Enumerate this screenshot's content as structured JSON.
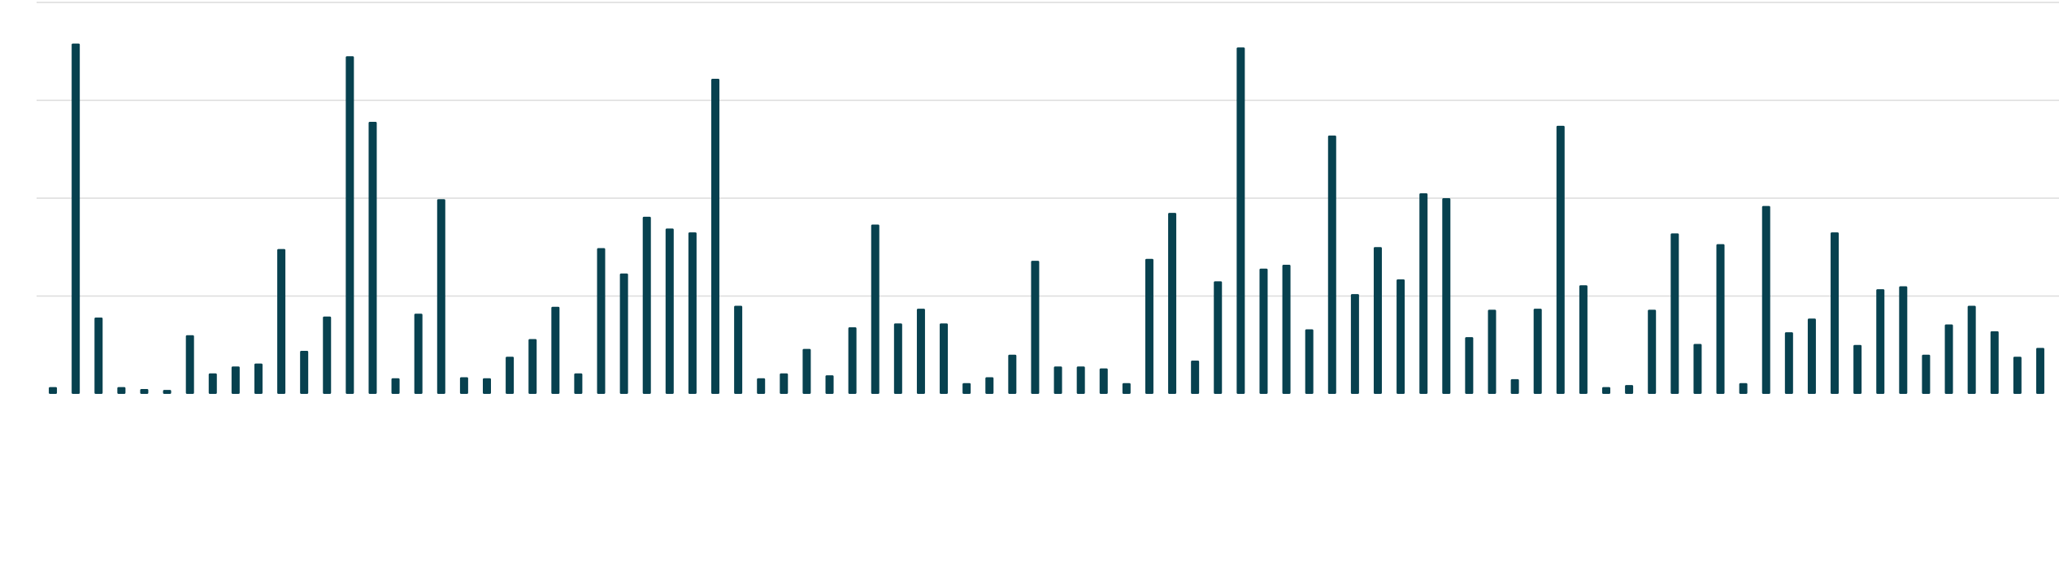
{
  "chart_data": {
    "type": "bar",
    "categories": [
      null,
      null,
      null,
      null,
      null,
      null,
      null,
      null,
      null,
      null,
      null,
      null,
      null,
      null,
      null,
      null,
      null,
      null,
      null,
      null,
      null,
      null,
      null,
      null,
      null,
      null,
      null,
      null,
      null,
      null,
      null,
      null,
      null,
      null,
      null,
      null,
      null,
      null,
      null,
      null,
      null,
      null,
      null,
      null,
      null,
      null,
      null,
      null,
      null,
      null,
      null,
      null,
      null,
      null,
      null,
      null,
      null,
      null,
      null,
      null,
      null,
      null,
      null,
      null,
      null,
      null,
      null,
      null,
      null,
      null,
      null,
      null,
      null,
      null,
      null,
      null,
      null,
      null,
      null,
      null,
      null,
      null,
      null,
      null,
      null,
      null,
      null,
      null
    ],
    "values": [
      0.07,
      3.58,
      0.78,
      0.07,
      0.05,
      0.04,
      0.6,
      0.21,
      0.28,
      0.31,
      1.48,
      0.44,
      0.79,
      3.45,
      2.78,
      0.16,
      0.82,
      1.99,
      0.17,
      0.16,
      0.38,
      0.56,
      0.89,
      0.21,
      1.49,
      1.23,
      1.81,
      1.69,
      1.65,
      3.22,
      0.9,
      0.16,
      0.21,
      0.46,
      0.19,
      0.68,
      1.73,
      0.72,
      0.87,
      0.72,
      0.11,
      0.17,
      0.4,
      1.36,
      0.28,
      0.28,
      0.26,
      0.11,
      1.38,
      1.85,
      0.34,
      1.15,
      3.54,
      1.28,
      1.32,
      0.66,
      2.64,
      1.02,
      1.5,
      1.17,
      2.05,
      2.0,
      0.58,
      0.86,
      0.15,
      0.87,
      2.74,
      1.11,
      0.07,
      0.09,
      0.86,
      1.64,
      0.51,
      1.53,
      0.11,
      1.92,
      0.63,
      0.77,
      1.65,
      0.5,
      1.07,
      1.1,
      0.4,
      0.71,
      0.9,
      0.64,
      0.38,
      0.47
    ],
    "color": "#07414f",
    "ylim": [
      0,
      4
    ],
    "yticks": [
      0,
      1,
      2,
      3,
      4
    ],
    "grid": true
  }
}
